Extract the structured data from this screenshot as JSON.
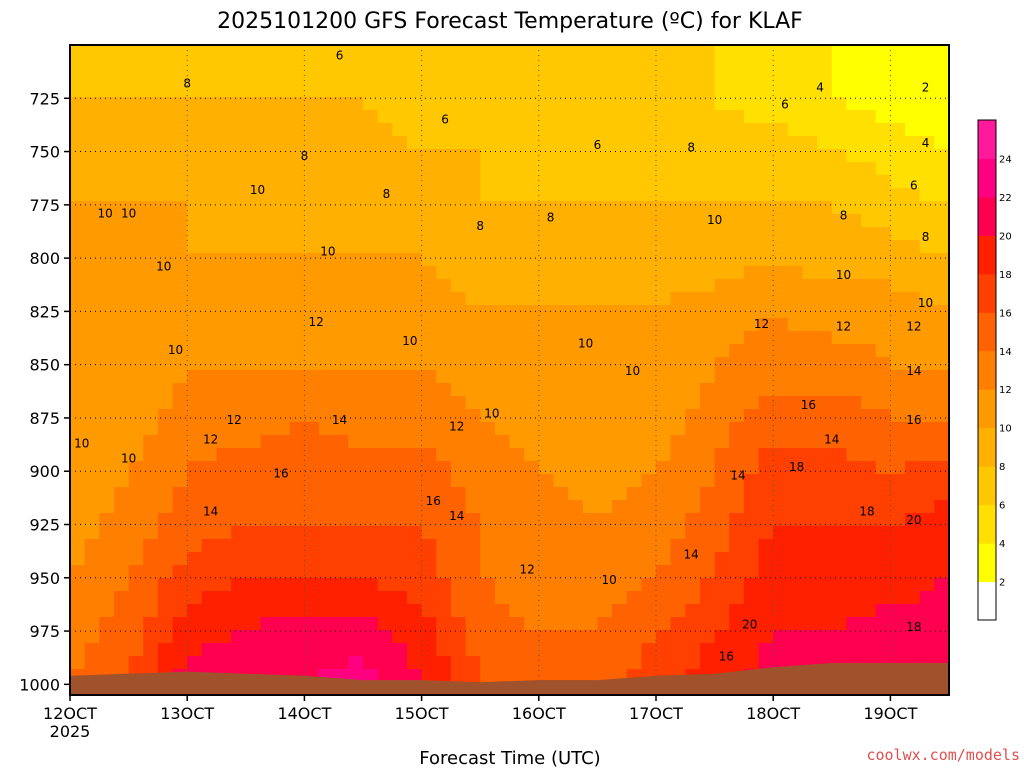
{
  "chart_data": {
    "type": "heatmap",
    "title": "2025101200 GFS Forecast Temperature (ºC) for KLAF",
    "xlabel": "Forecast Time (UTC)",
    "ylabel": "",
    "credit": "coolwx.com/models",
    "x_ticks": [
      {
        "label": "12OCT",
        "sub": "2025",
        "day": 12
      },
      {
        "label": "13OCT",
        "day": 13
      },
      {
        "label": "14OCT",
        "day": 14
      },
      {
        "label": "15OCT",
        "day": 15
      },
      {
        "label": "16OCT",
        "day": 16
      },
      {
        "label": "17OCT",
        "day": 17
      },
      {
        "label": "18OCT",
        "day": 18
      },
      {
        "label": "19OCT",
        "day": 19
      }
    ],
    "xlim": [
      12,
      19.5
    ],
    "y_ticks": [
      725,
      750,
      775,
      800,
      825,
      850,
      875,
      900,
      925,
      950,
      975,
      1000
    ],
    "ylim": [
      1005,
      700
    ],
    "colorbar": {
      "levels": [
        2,
        4,
        6,
        8,
        10,
        12,
        14,
        16,
        18,
        20,
        22,
        24
      ],
      "colors": [
        "#ffffff",
        "#ffff00",
        "#ffe000",
        "#ffc800",
        "#ffb000",
        "#ff9a00",
        "#ff8000",
        "#ff6200",
        "#ff4000",
        "#ff2000",
        "#ff0050",
        "#ff0080",
        "#ff1a9c"
      ]
    },
    "temperature_levels": [
      {
        "p": 700,
        "values": [
          7,
          7,
          7,
          7,
          7,
          7,
          7,
          7,
          7,
          7,
          6,
          6,
          5,
          4,
          3,
          2
        ]
      },
      {
        "p": 725,
        "values": [
          8,
          8,
          8,
          8,
          8,
          8,
          7,
          7,
          6,
          6,
          6,
          6,
          5,
          4,
          3,
          2
        ]
      },
      {
        "p": 750,
        "values": [
          9,
          9,
          9,
          9,
          9,
          9,
          8,
          8,
          7,
          7,
          7,
          7,
          7,
          6,
          5,
          4
        ]
      },
      {
        "p": 775,
        "values": [
          10,
          10,
          10,
          9,
          9,
          9,
          9,
          8,
          8,
          8,
          8,
          8,
          8,
          8,
          7,
          6
        ]
      },
      {
        "p": 800,
        "values": [
          10,
          10,
          10,
          10,
          10,
          10,
          10,
          9,
          9,
          9,
          9,
          9,
          10,
          9,
          9,
          8
        ]
      },
      {
        "p": 825,
        "values": [
          10,
          10,
          11,
          11,
          11,
          11,
          11,
          10,
          10,
          10,
          10,
          11,
          12,
          11,
          11,
          10
        ]
      },
      {
        "p": 850,
        "values": [
          10,
          10,
          12,
          12,
          12,
          12,
          12,
          11,
          11,
          10,
          10,
          12,
          13,
          13,
          12,
          12
        ]
      },
      {
        "p": 875,
        "values": [
          10,
          11,
          13,
          13,
          14,
          13,
          13,
          12,
          11,
          10,
          11,
          13,
          15,
          15,
          14,
          14
        ]
      },
      {
        "p": 900,
        "values": [
          10,
          12,
          14,
          15,
          15,
          15,
          15,
          13,
          12,
          11,
          12,
          14,
          17,
          17,
          16,
          17
        ]
      },
      {
        "p": 925,
        "values": [
          11,
          13,
          15,
          16,
          16,
          16,
          16,
          14,
          13,
          12,
          13,
          15,
          18,
          18,
          18,
          19
        ]
      },
      {
        "p": 950,
        "values": [
          12,
          14,
          17,
          18,
          18,
          18,
          17,
          14,
          13,
          13,
          14,
          16,
          19,
          19,
          19,
          20
        ]
      },
      {
        "p": 975,
        "values": [
          13,
          15,
          19,
          20,
          21,
          21,
          19,
          15,
          14,
          14,
          16,
          18,
          20,
          20,
          21,
          21
        ]
      },
      {
        "p": 1000,
        "values": [
          14,
          16,
          21,
          22,
          22,
          23,
          20,
          16,
          15,
          15,
          17,
          19,
          21,
          21,
          22,
          22
        ]
      }
    ],
    "temperature_times": [
      12,
      12.5,
      13,
      13.5,
      14,
      14.5,
      15,
      15.5,
      16,
      16.5,
      17,
      17.5,
      18,
      18.5,
      19,
      19.5
    ],
    "surface_pressure": [
      {
        "t": 12,
        "p": 996
      },
      {
        "t": 12.5,
        "p": 995
      },
      {
        "t": 13,
        "p": 994
      },
      {
        "t": 13.5,
        "p": 995
      },
      {
        "t": 14,
        "p": 996
      },
      {
        "t": 14.5,
        "p": 998
      },
      {
        "t": 15,
        "p": 998
      },
      {
        "t": 15.5,
        "p": 999
      },
      {
        "t": 16,
        "p": 998
      },
      {
        "t": 16.5,
        "p": 998
      },
      {
        "t": 17,
        "p": 996
      },
      {
        "t": 17.5,
        "p": 995
      },
      {
        "t": 18,
        "p": 992
      },
      {
        "t": 18.5,
        "p": 990
      },
      {
        "t": 19,
        "p": 990
      },
      {
        "t": 19.5,
        "p": 990
      }
    ],
    "contour_labels": [
      {
        "text": "6",
        "t": 14.3,
        "p": 705
      },
      {
        "text": "8",
        "t": 13.0,
        "p": 718
      },
      {
        "text": "6",
        "t": 15.2,
        "p": 735
      },
      {
        "text": "4",
        "t": 18.4,
        "p": 720
      },
      {
        "text": "2",
        "t": 19.3,
        "p": 720
      },
      {
        "text": "6",
        "t": 18.1,
        "p": 728
      },
      {
        "text": "6",
        "t": 16.5,
        "p": 747
      },
      {
        "text": "8",
        "t": 14.0,
        "p": 752
      },
      {
        "text": "8",
        "t": 17.3,
        "p": 748
      },
      {
        "text": "4",
        "t": 19.3,
        "p": 746
      },
      {
        "text": "10",
        "t": 13.6,
        "p": 768
      },
      {
        "text": "8",
        "t": 14.7,
        "p": 770
      },
      {
        "text": "6",
        "t": 19.2,
        "p": 766
      },
      {
        "text": "10",
        "t": 12.3,
        "p": 779
      },
      {
        "text": "10",
        "t": 12.5,
        "p": 779
      },
      {
        "text": "8",
        "t": 15.5,
        "p": 785
      },
      {
        "text": "8",
        "t": 16.1,
        "p": 781
      },
      {
        "text": "10",
        "t": 17.5,
        "p": 782
      },
      {
        "text": "8",
        "t": 18.6,
        "p": 780
      },
      {
        "text": "8",
        "t": 19.3,
        "p": 790
      },
      {
        "text": "10",
        "t": 12.8,
        "p": 804
      },
      {
        "text": "10",
        "t": 14.2,
        "p": 797
      },
      {
        "text": "10",
        "t": 18.6,
        "p": 808
      },
      {
        "text": "10",
        "t": 19.3,
        "p": 821
      },
      {
        "text": "12",
        "t": 14.1,
        "p": 830
      },
      {
        "text": "12",
        "t": 17.9,
        "p": 831
      },
      {
        "text": "12",
        "t": 18.6,
        "p": 832
      },
      {
        "text": "12",
        "t": 19.2,
        "p": 832
      },
      {
        "text": "10",
        "t": 12.9,
        "p": 843
      },
      {
        "text": "10",
        "t": 14.9,
        "p": 839
      },
      {
        "text": "10",
        "t": 16.4,
        "p": 840
      },
      {
        "text": "10",
        "t": 16.8,
        "p": 853
      },
      {
        "text": "14",
        "t": 19.2,
        "p": 853
      },
      {
        "text": "16",
        "t": 18.3,
        "p": 869
      },
      {
        "text": "12",
        "t": 13.4,
        "p": 876
      },
      {
        "text": "14",
        "t": 14.3,
        "p": 876
      },
      {
        "text": "12",
        "t": 15.3,
        "p": 879
      },
      {
        "text": "10",
        "t": 15.6,
        "p": 873
      },
      {
        "text": "16",
        "t": 19.2,
        "p": 876
      },
      {
        "text": "14",
        "t": 18.5,
        "p": 885
      },
      {
        "text": "10",
        "t": 12.1,
        "p": 887
      },
      {
        "text": "12",
        "t": 13.2,
        "p": 885
      },
      {
        "text": "10",
        "t": 12.5,
        "p": 894
      },
      {
        "text": "16",
        "t": 13.8,
        "p": 901
      },
      {
        "text": "18",
        "t": 18.2,
        "p": 898
      },
      {
        "text": "14",
        "t": 17.7,
        "p": 902
      },
      {
        "text": "16",
        "t": 15.1,
        "p": 914
      },
      {
        "text": "14",
        "t": 13.2,
        "p": 919
      },
      {
        "text": "14",
        "t": 15.3,
        "p": 921
      },
      {
        "text": "18",
        "t": 18.8,
        "p": 919
      },
      {
        "text": "20",
        "t": 19.2,
        "p": 923
      },
      {
        "text": "14",
        "t": 17.3,
        "p": 939
      },
      {
        "text": "12",
        "t": 15.9,
        "p": 946
      },
      {
        "text": "10",
        "t": 16.6,
        "p": 951
      },
      {
        "text": "20",
        "t": 17.8,
        "p": 972
      },
      {
        "text": "18",
        "t": 19.2,
        "p": 973
      },
      {
        "text": "16",
        "t": 17.6,
        "p": 987
      }
    ]
  }
}
